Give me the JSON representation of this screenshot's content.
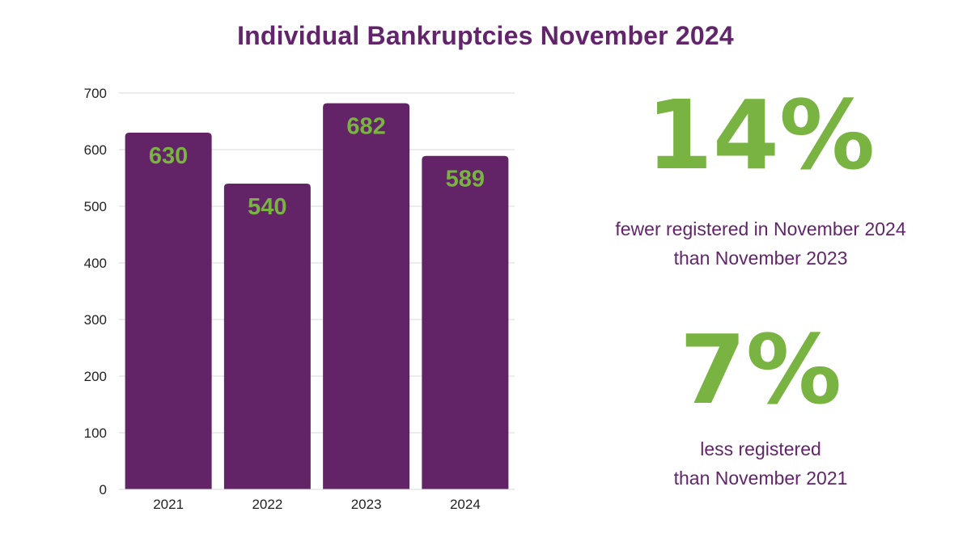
{
  "title": "Individual Bankruptcies November 2024",
  "colors": {
    "bar": "#632467",
    "label": "#79b342",
    "title": "#62246a",
    "grid": "#d9d9d9",
    "axis": "#222222"
  },
  "chart_data": {
    "type": "bar",
    "categories": [
      "2021",
      "2022",
      "2023",
      "2024"
    ],
    "values": [
      630,
      540,
      682,
      589
    ],
    "data_labels": [
      "630",
      "540",
      "682",
      "589"
    ],
    "ylim": [
      0,
      700
    ],
    "yticks": [
      0,
      100,
      200,
      300,
      400,
      500,
      600,
      700
    ],
    "grid": true,
    "xlabel": "",
    "ylabel": ""
  },
  "stats": [
    {
      "value": "14%",
      "lines": [
        "fewer registered in November 2024",
        "than November 2023"
      ]
    },
    {
      "value": "7%",
      "lines": [
        "less registered",
        "than November 2021"
      ]
    }
  ]
}
